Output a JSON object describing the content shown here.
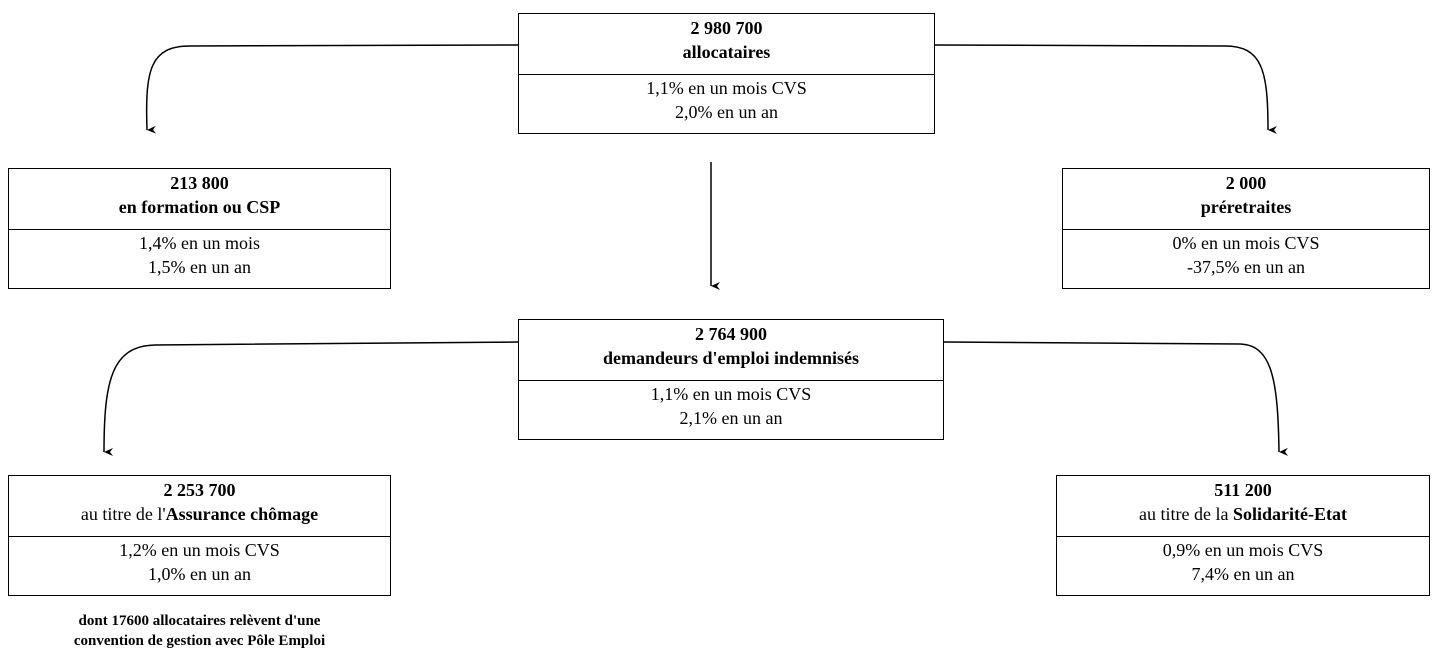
{
  "top": {
    "count": "2 980 700",
    "label": "allocataires",
    "monthly": "1,1% en un mois CVS",
    "yearly": "2,0% en un an"
  },
  "formation": {
    "count": "213 800",
    "label": "en formation ou CSP",
    "monthly": "1,4% en un mois",
    "yearly": "1,5% en un an"
  },
  "preretraites": {
    "count": "2 000",
    "label": "préretraites",
    "monthly": "0% en un mois CVS",
    "yearly": "-37,5% en un an"
  },
  "indemnises": {
    "count": "2 764 900",
    "label": "demandeurs d'emploi indemnisés",
    "monthly": "1,1% en un mois CVS",
    "yearly": "2,1% en un an"
  },
  "assurance": {
    "count": "2 253 700",
    "label_prefix": "au titre de l'",
    "label_bold": "Assurance chômage",
    "monthly": "1,2% en un mois CVS",
    "yearly": "1,0% en un an",
    "note_line1": "dont 17600 allocataires relèvent d'une",
    "note_line2": "convention de gestion avec Pôle Emploi"
  },
  "solidarite": {
    "count": "511 200",
    "label_prefix": "au titre de la ",
    "label_bold": "Solidarité-Etat",
    "monthly": "0,9% en un mois CVS",
    "yearly": "7,4% en un an"
  }
}
